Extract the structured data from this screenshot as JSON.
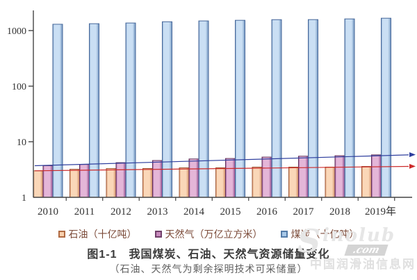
{
  "figure": {
    "title": "图1-1　我国煤炭、石油、天然气资源储量变化",
    "subtitle": "（石油、天然气为剩余探明技术可采储量）"
  },
  "watermark": {
    "initial": "S",
    "word": "inolub",
    "dotcom": ".com",
    "line2": "中国润滑油信息网"
  },
  "chart_data": {
    "type": "bar",
    "y_scale": "log",
    "title": "",
    "xlabel": "",
    "ylabel": "",
    "ylim": [
      1,
      2300
    ],
    "y_ticks": [
      1,
      10,
      100,
      1000
    ],
    "grid": false,
    "legend_position": "bottom",
    "categories": [
      "2010",
      "2011",
      "2012",
      "2013",
      "2014",
      "2015",
      "2016",
      "2017",
      "2018",
      "2019年"
    ],
    "series": [
      {
        "name": "石油（十亿吨）",
        "values": [
          3.0,
          3.2,
          3.3,
          3.3,
          3.4,
          3.4,
          3.5,
          3.5,
          3.5,
          3.6
        ],
        "fill_edge": "#d08a60",
        "fill_light": "#fad7b8",
        "stroke": "#a05a38",
        "swatch_fill": "#f7cfac",
        "swatch_border": "#b06a42"
      },
      {
        "name": "天然气（万亿立方米）",
        "values": [
          3.7,
          3.9,
          4.2,
          4.6,
          4.9,
          5.0,
          5.3,
          5.5,
          5.6,
          5.8
        ],
        "fill_edge": "#90488a",
        "fill_light": "#e4b6d8",
        "stroke": "#5f2f5a",
        "swatch_fill": "#c78abc",
        "swatch_border": "#70406a"
      },
      {
        "name": "煤炭（十亿吨）",
        "values": [
          1300,
          1330,
          1370,
          1440,
          1490,
          1530,
          1570,
          1575,
          1620,
          1670
        ],
        "fill_edge": "#7296c0",
        "fill_light": "#cadff4",
        "stroke": "#46679a",
        "swatch_fill": "#a7c8e8",
        "swatch_border": "#547ca8"
      }
    ],
    "trend_lines": [
      {
        "series_index": 0,
        "color": "#cc2a2a",
        "note": "oil linear trend with arrow"
      },
      {
        "series_index": 1,
        "color": "#2f3f9e",
        "note": "gas linear trend with arrow"
      }
    ],
    "axis_color": "#444444",
    "tick_label_color": "#333333"
  }
}
